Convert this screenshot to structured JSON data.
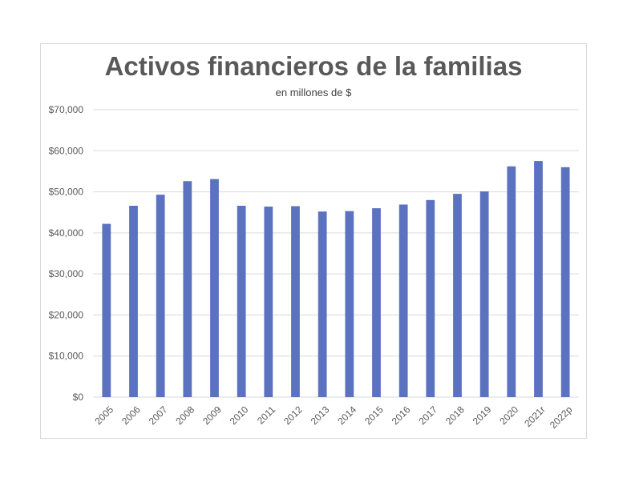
{
  "chart_data": {
    "type": "bar",
    "title": "Activos financieros de la familias",
    "subtitle": "en millones de $",
    "xlabel": "",
    "ylabel": "",
    "categories": [
      "2005",
      "2006",
      "2007",
      "2008",
      "2009",
      "2010",
      "2011",
      "2012",
      "2013",
      "2014",
      "2015",
      "2016",
      "2017",
      "2018",
      "2019",
      "2020",
      "2021r",
      "2022p"
    ],
    "values": [
      42200,
      46600,
      49300,
      52600,
      53100,
      46600,
      46400,
      46500,
      45200,
      45300,
      46000,
      46900,
      48000,
      49500,
      50100,
      56200,
      57500,
      56000
    ],
    "ylim": [
      0,
      70000
    ],
    "yticks": [
      0,
      10000,
      20000,
      30000,
      40000,
      50000,
      60000,
      70000
    ],
    "ytick_labels": [
      "$0",
      "$10,000",
      "$20,000",
      "$30,000",
      "$40,000",
      "$50,000",
      "$60,000",
      "$70,000"
    ],
    "grid": true,
    "legend": "none",
    "bar_color": "#5b72c0",
    "grid_color": "#d9d9d9"
  }
}
